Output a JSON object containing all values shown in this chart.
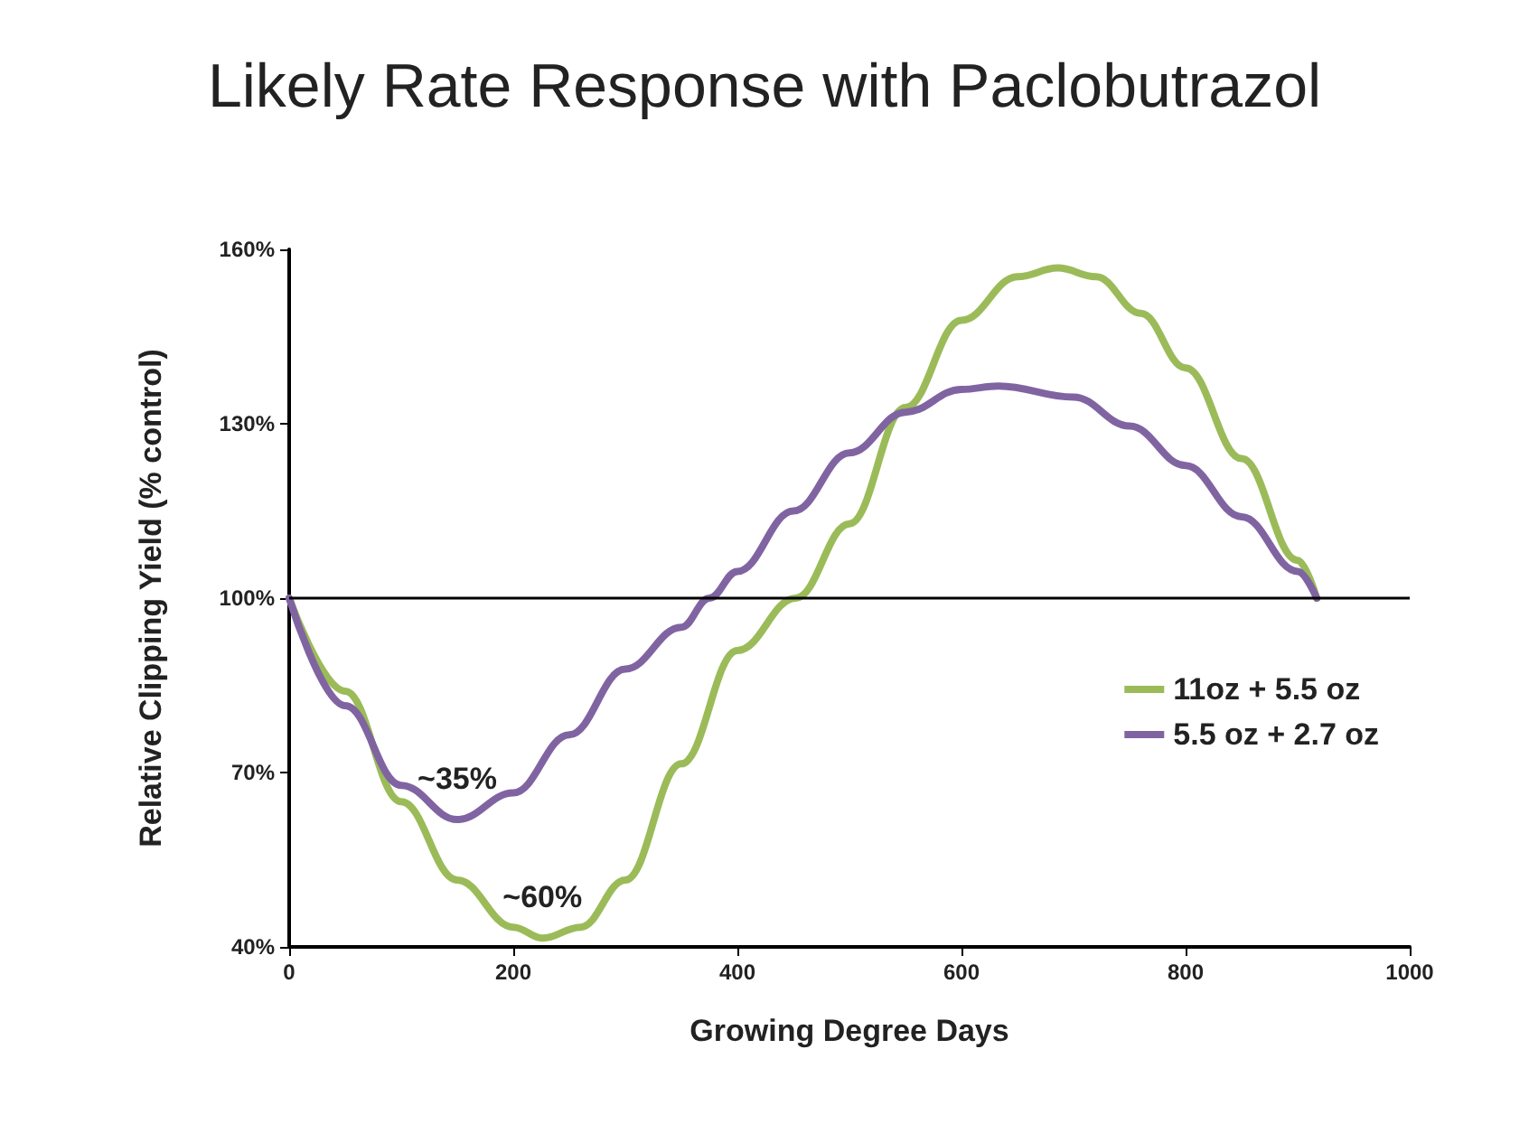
{
  "chart_data": {
    "type": "line",
    "title": "Likely Rate Response with Paclobutrazol",
    "xlabel": "Growing Degree Days",
    "ylabel": "Relative Clipping Yield (% control)",
    "xlim": [
      0,
      1000
    ],
    "xticks": [
      0,
      200,
      400,
      600,
      800,
      1000
    ],
    "ylim": [
      40,
      160
    ],
    "yticks": [
      {
        "value": 40,
        "label": "40%"
      },
      {
        "value": 70,
        "label": "70%"
      },
      {
        "value": 100,
        "label": "100%"
      },
      {
        "value": 130,
        "label": "130%"
      },
      {
        "value": 160,
        "label": "160%"
      }
    ],
    "series": [
      {
        "name": "11oz + 5.5 oz",
        "color": "#9bbb59",
        "x": [
          0,
          50,
          100,
          150,
          200,
          226,
          260,
          300,
          350,
          400,
          452,
          500,
          550,
          600,
          650,
          686,
          720,
          760,
          800,
          850,
          900,
          917
        ],
        "values": [
          100,
          84,
          65,
          51.5,
          43.4,
          41.5,
          43.4,
          51.5,
          71.5,
          91,
          100,
          112.8,
          132.8,
          147.8,
          155.3,
          156.8,
          155.3,
          149,
          139.6,
          124,
          106.5,
          100
        ]
      },
      {
        "name": "5.5 oz + 2.7 oz",
        "color": "#8064a2",
        "x": [
          0,
          50,
          100,
          150,
          200,
          250,
          300,
          350,
          375,
          400,
          450,
          500,
          550,
          600,
          633,
          700,
          750,
          800,
          850,
          900,
          917
        ],
        "values": [
          100,
          81.5,
          67.8,
          61.9,
          66.5,
          76.5,
          87.8,
          95,
          100,
          104.6,
          115,
          125,
          132,
          135.9,
          136.5,
          134.6,
          129.6,
          122.8,
          114,
          104.6,
          100
        ]
      }
    ],
    "ref_lines": [
      {
        "axis": "y",
        "value": 100,
        "color": "#000000"
      }
    ],
    "annotations": [
      {
        "text": "~35%",
        "x": 150,
        "y": 61.9
      },
      {
        "text": "~60%",
        "x": 226,
        "y": 41.5
      }
    ],
    "legend": "right",
    "grid": false,
    "marker": "none",
    "line_style": "solid"
  }
}
